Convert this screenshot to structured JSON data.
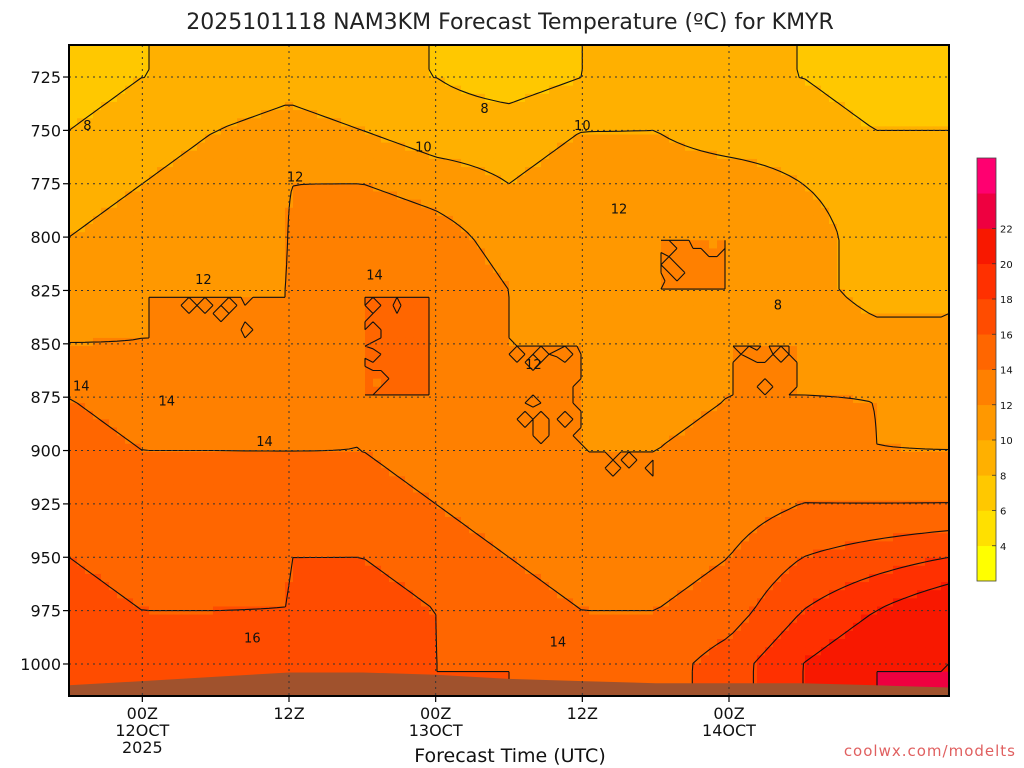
{
  "chart_data": {
    "type": "heatmap",
    "title": "2025101118 NAM3KM Forecast Temperature (ºC) for KMYR",
    "xlabel": "Forecast Time (UTC)",
    "ylabel": "",
    "credit": "coolwx.com/modelts",
    "x_range_hours": [
      0,
      72
    ],
    "x_ticks": [
      {
        "hour": 6,
        "lines": [
          "00Z",
          "12OCT",
          "2025"
        ]
      },
      {
        "hour": 18,
        "lines": [
          "12Z"
        ]
      },
      {
        "hour": 30,
        "lines": [
          "00Z",
          "13OCT"
        ]
      },
      {
        "hour": 42,
        "lines": [
          "12Z"
        ]
      },
      {
        "hour": 54,
        "lines": [
          "00Z",
          "14OCT"
        ]
      }
    ],
    "y_range_hpa": [
      1015,
      710
    ],
    "y_ticks": [
      725,
      750,
      775,
      800,
      825,
      850,
      875,
      900,
      925,
      950,
      975,
      1000
    ],
    "colorbar": {
      "levels": [
        2,
        4,
        6,
        8,
        10,
        12,
        14,
        16,
        18,
        20,
        22,
        24
      ],
      "colors": [
        "#ffff00",
        "#ffe000",
        "#ffc800",
        "#ffb000",
        "#ff9800",
        "#ff8000",
        "#ff6600",
        "#ff4c00",
        "#ff3000",
        "#f81800",
        "#ee0040",
        "#ff0070"
      ],
      "tick_labels": [
        "4",
        "6",
        "8",
        "10",
        "12",
        "14",
        "16",
        "18",
        "20",
        "22"
      ]
    },
    "x_hours": [
      0,
      6,
      12,
      18,
      24,
      30,
      36,
      42,
      48,
      54,
      60,
      66,
      72
    ],
    "levels_hpa": [
      725,
      750,
      775,
      800,
      825,
      850,
      875,
      900,
      925,
      950,
      975,
      1000
    ],
    "temperature_c": [
      [
        7,
        8,
        8,
        9,
        8,
        8,
        7,
        8,
        9,
        8,
        8,
        7,
        7
      ],
      [
        8,
        9,
        10,
        11,
        10,
        9,
        9,
        10,
        10,
        9,
        9,
        8,
        8
      ],
      [
        9,
        10,
        11,
        12,
        12,
        11,
        10,
        11,
        11,
        11,
        10,
        9,
        9
      ],
      [
        10,
        11,
        11,
        12,
        14,
        13,
        11,
        11,
        12,
        12,
        11,
        9,
        9
      ],
      [
        11,
        12,
        12,
        12,
        14,
        14,
        12,
        11,
        12,
        12,
        11,
        9,
        10
      ],
      [
        12,
        12,
        12,
        12,
        14,
        14,
        12,
        12,
        11,
        12,
        12,
        11,
        10
      ],
      [
        14,
        13,
        13,
        12,
        14,
        14,
        12,
        12,
        11,
        12,
        12,
        12,
        11
      ],
      [
        15,
        14,
        14,
        14,
        14,
        13,
        12,
        12,
        12,
        13,
        13,
        12,
        12
      ],
      [
        16,
        15,
        15,
        15,
        15,
        14,
        13,
        12,
        12,
        13,
        14,
        14,
        14
      ],
      [
        16,
        15,
        15,
        16,
        16,
        15,
        14,
        13,
        13,
        14,
        16,
        17,
        18
      ],
      [
        17,
        16,
        16,
        16,
        17,
        16,
        15,
        14,
        14,
        15,
        18,
        20,
        22
      ],
      [
        18,
        17,
        17,
        17,
        17,
        16,
        16,
        15,
        15,
        17,
        20,
        22,
        22
      ]
    ],
    "terrain_surface_hpa": [
      1010,
      1008,
      1006,
      1004,
      1004,
      1005,
      1007,
      1008,
      1009,
      1009,
      1009,
      1010,
      1011
    ],
    "contour_labels": [
      {
        "text": "8",
        "hour": 1.5,
        "hpa": 748
      },
      {
        "text": "8",
        "hour": 34,
        "hpa": 740
      },
      {
        "text": "10",
        "hour": 29,
        "hpa": 758
      },
      {
        "text": "10",
        "hour": 42,
        "hpa": 748
      },
      {
        "text": "12",
        "hour": 18.5,
        "hpa": 772
      },
      {
        "text": "12",
        "hour": 11,
        "hpa": 820
      },
      {
        "text": "12",
        "hour": 45,
        "hpa": 787
      },
      {
        "text": "12",
        "hour": 38,
        "hpa": 860
      },
      {
        "text": "14",
        "hour": 25,
        "hpa": 818
      },
      {
        "text": "14",
        "hour": 1,
        "hpa": 870
      },
      {
        "text": "14",
        "hour": 8,
        "hpa": 877
      },
      {
        "text": "14",
        "hour": 16,
        "hpa": 896
      },
      {
        "text": "14",
        "hour": 40,
        "hpa": 990
      },
      {
        "text": "16",
        "hour": 15,
        "hpa": 988
      },
      {
        "text": "8",
        "hour": 58,
        "hpa": 832
      }
    ]
  }
}
